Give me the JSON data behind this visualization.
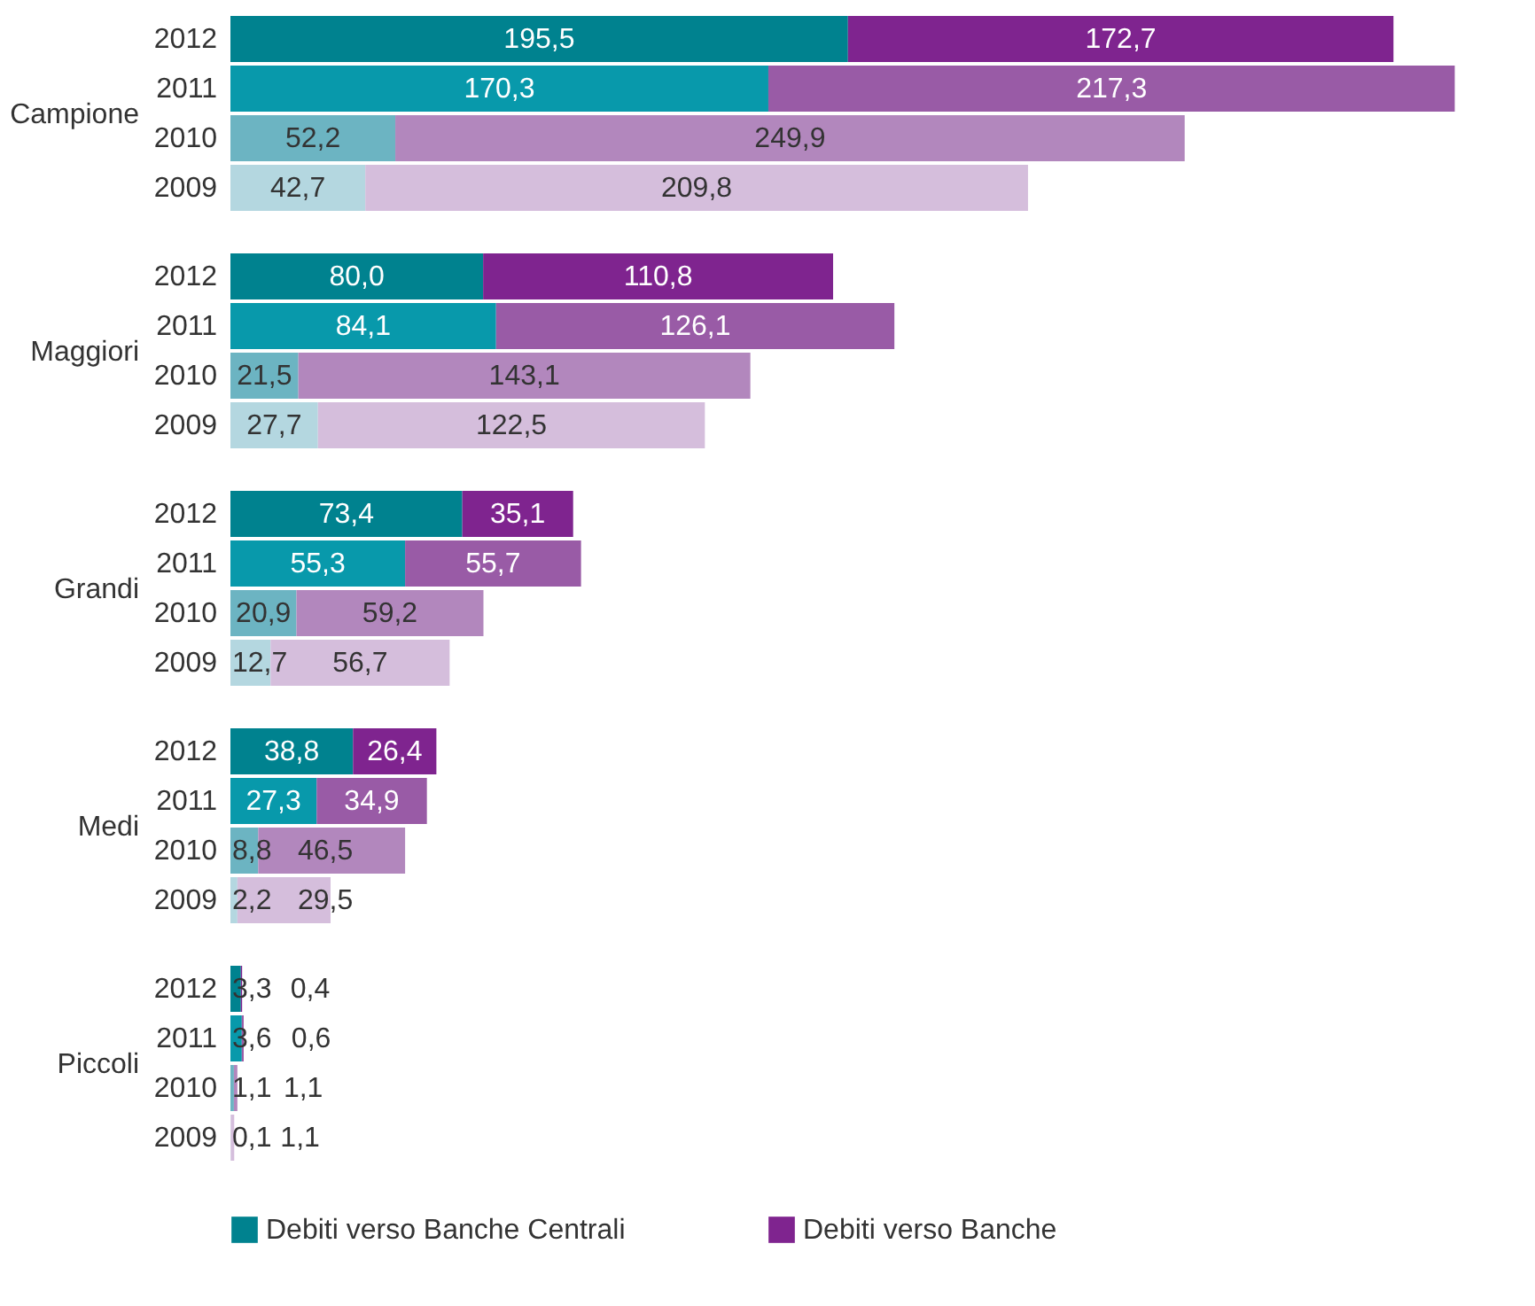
{
  "chart_data": [
    {
      "type": "bar",
      "orientation": "horizontal",
      "stacked": true,
      "ylabel": "Campione",
      "categories": [
        "2012",
        "2011",
        "2010",
        "2009"
      ],
      "xlim": [
        0,
        390
      ],
      "tick_labels": "y",
      "legend": "bottom",
      "series": [
        {
          "name": "Debiti verso Banche Centrali",
          "color": "#00828f",
          "colors": [
            "#00828f",
            "#0899ab",
            "#6cb4c2",
            "#b4d7e0"
          ],
          "values": [
            195.5,
            170.3,
            52.2,
            42.7
          ],
          "value_labels": [
            "195,5",
            "170,3",
            "52,2",
            "42,7"
          ]
        },
        {
          "name": "Debiti verso Banche",
          "color": "#7f248f",
          "colors": [
            "#7f248f",
            "#995ba6",
            "#b287bd",
            "#d5bedc"
          ],
          "values": [
            172.7,
            217.3,
            249.9,
            209.8
          ],
          "value_labels": [
            "172,7",
            "217,3",
            "249,9",
            "209,8"
          ]
        }
      ]
    },
    {
      "type": "bar",
      "orientation": "horizontal",
      "stacked": true,
      "ylabel": "Maggiori",
      "categories": [
        "2012",
        "2011",
        "2010",
        "2009"
      ],
      "xlim": [
        0,
        390
      ],
      "tick_labels": "y",
      "legend": "bottom",
      "series": [
        {
          "name": "Debiti verso Banche Centrali",
          "color": "#00828f",
          "colors": [
            "#00828f",
            "#0899ab",
            "#6cb4c2",
            "#b4d7e0"
          ],
          "values": [
            80.0,
            84.1,
            21.5,
            27.7
          ],
          "value_labels": [
            "80,0",
            "84,1",
            "21,5",
            "27,7"
          ]
        },
        {
          "name": "Debiti verso Banche",
          "color": "#7f248f",
          "colors": [
            "#7f248f",
            "#995ba6",
            "#b287bd",
            "#d5bedc"
          ],
          "values": [
            110.8,
            126.1,
            143.1,
            122.5
          ],
          "value_labels": [
            "110,8",
            "126,1",
            "143,1",
            "122,5"
          ]
        }
      ]
    },
    {
      "type": "bar",
      "orientation": "horizontal",
      "stacked": true,
      "ylabel": "Grandi",
      "categories": [
        "2012",
        "2011",
        "2010",
        "2009"
      ],
      "xlim": [
        0,
        390
      ],
      "tick_labels": "y",
      "legend": "bottom",
      "series": [
        {
          "name": "Debiti verso Banche Centrali",
          "color": "#00828f",
          "colors": [
            "#00828f",
            "#0899ab",
            "#6cb4c2",
            "#b4d7e0"
          ],
          "values": [
            73.4,
            55.3,
            20.9,
            12.7
          ],
          "value_labels": [
            "73,4",
            "55,3",
            "20,9",
            "12,7"
          ]
        },
        {
          "name": "Debiti verso Banche",
          "color": "#7f248f",
          "colors": [
            "#7f248f",
            "#995ba6",
            "#b287bd",
            "#d5bedc"
          ],
          "values": [
            35.1,
            55.7,
            59.2,
            56.7
          ],
          "value_labels": [
            "35,1",
            "55,7",
            "59,2",
            "56,7"
          ]
        }
      ]
    },
    {
      "type": "bar",
      "orientation": "horizontal",
      "stacked": true,
      "ylabel": "Medi",
      "categories": [
        "2012",
        "2011",
        "2010",
        "2009"
      ],
      "xlim": [
        0,
        390
      ],
      "tick_labels": "y",
      "legend": "bottom",
      "series": [
        {
          "name": "Debiti verso Banche Centrali",
          "color": "#00828f",
          "colors": [
            "#00828f",
            "#0899ab",
            "#6cb4c2",
            "#b4d7e0"
          ],
          "values": [
            38.8,
            27.3,
            8.8,
            2.2
          ],
          "value_labels": [
            "38,8",
            "27,3",
            "8,8",
            "2,2"
          ]
        },
        {
          "name": "Debiti verso Banche",
          "color": "#7f248f",
          "colors": [
            "#7f248f",
            "#995ba6",
            "#b287bd",
            "#d5bedc"
          ],
          "values": [
            26.4,
            34.9,
            46.5,
            29.5
          ],
          "value_labels": [
            "26,4",
            "34,9",
            "46,5",
            "29,5"
          ]
        }
      ]
    },
    {
      "type": "bar",
      "orientation": "horizontal",
      "stacked": true,
      "ylabel": "Piccoli",
      "categories": [
        "2012",
        "2011",
        "2010",
        "2009"
      ],
      "xlim": [
        0,
        390
      ],
      "tick_labels": "y",
      "legend": "bottom",
      "series": [
        {
          "name": "Debiti verso Banche Centrali",
          "color": "#00828f",
          "colors": [
            "#00828f",
            "#0899ab",
            "#6cb4c2",
            "#b4d7e0"
          ],
          "values": [
            3.3,
            3.6,
            1.1,
            0.1
          ],
          "value_labels": [
            "3,3",
            "3,6",
            "1,1",
            "0,1"
          ]
        },
        {
          "name": "Debiti verso Banche",
          "color": "#7f248f",
          "colors": [
            "#7f248f",
            "#995ba6",
            "#b287bd",
            "#d5bedc"
          ],
          "values": [
            0.4,
            0.6,
            1.1,
            1.1
          ],
          "value_labels": [
            "0,4",
            "0,6",
            "1,1",
            "1,1"
          ]
        }
      ]
    }
  ]
}
